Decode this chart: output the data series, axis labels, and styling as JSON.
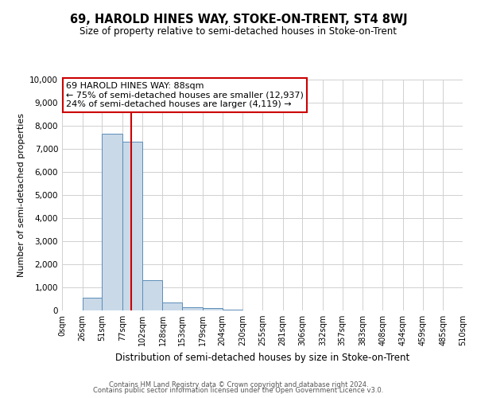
{
  "title": "69, HAROLD HINES WAY, STOKE-ON-TRENT, ST4 8WJ",
  "subtitle": "Size of property relative to semi-detached houses in Stoke-on-Trent",
  "xlabel": "Distribution of semi-detached houses by size in Stoke-on-Trent",
  "ylabel": "Number of semi-detached properties",
  "footer_line1": "Contains HM Land Registry data © Crown copyright and database right 2024.",
  "footer_line2": "Contains public sector information licensed under the Open Government Licence v3.0.",
  "bin_edges": [
    0,
    26,
    51,
    77,
    102,
    128,
    153,
    179,
    204,
    230,
    255,
    281,
    306,
    332,
    357,
    383,
    408,
    434,
    459,
    485,
    510
  ],
  "bin_counts": [
    0,
    550,
    7650,
    7300,
    1300,
    350,
    150,
    100,
    50,
    0,
    0,
    0,
    0,
    0,
    0,
    0,
    0,
    0,
    0,
    0
  ],
  "property_line_x": 88,
  "bar_color": "#c9d9e8",
  "bar_edge_color": "#5b8db8",
  "line_color": "#cc0000",
  "annotation_title": "69 HAROLD HINES WAY: 88sqm",
  "annotation_line1": "← 75% of semi-detached houses are smaller (12,937)",
  "annotation_line2": "24% of semi-detached houses are larger (4,119) →",
  "annotation_box_edge": "#cc0000",
  "ylim": [
    0,
    10000
  ],
  "yticks": [
    0,
    1000,
    2000,
    3000,
    4000,
    5000,
    6000,
    7000,
    8000,
    9000,
    10000
  ],
  "xtick_labels": [
    "0sqm",
    "26sqm",
    "51sqm",
    "77sqm",
    "102sqm",
    "128sqm",
    "153sqm",
    "179sqm",
    "204sqm",
    "230sqm",
    "255sqm",
    "281sqm",
    "306sqm",
    "332sqm",
    "357sqm",
    "383sqm",
    "408sqm",
    "434sqm",
    "459sqm",
    "485sqm",
    "510sqm"
  ],
  "background_color": "#ffffff",
  "grid_color": "#d0d0d0"
}
